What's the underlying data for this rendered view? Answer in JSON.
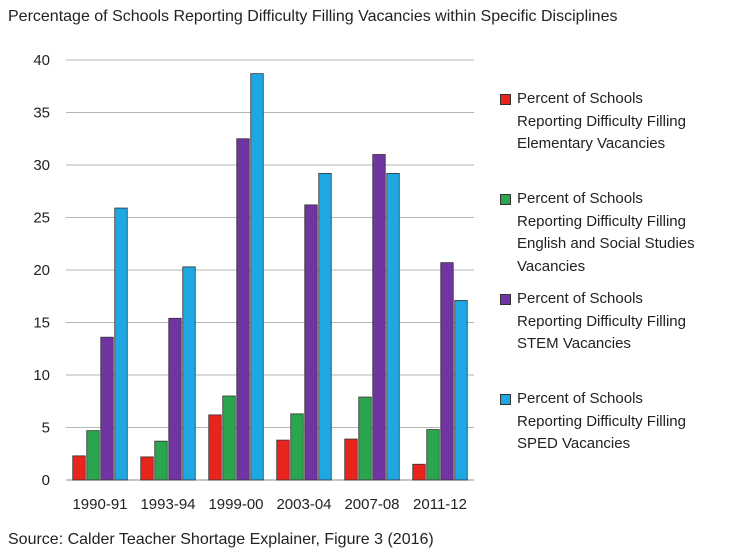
{
  "title": "Percentage of Schools Reporting Difficulty Filling Vacancies within Specific Disciplines",
  "source": "Source: Calder Teacher Shortage Explainer, Figure 3 (2016)",
  "chart_data": {
    "type": "bar",
    "title": "Percentage of Schools Reporting Difficulty Filling Vacancies within Specific Disciplines",
    "xlabel": "",
    "ylabel": "",
    "categories": [
      "1990-91",
      "1993-94",
      "1999-00",
      "2003-04",
      "2007-08",
      "2011-12"
    ],
    "ylim": [
      0,
      40
    ],
    "yticks": [
      0,
      5,
      10,
      15,
      20,
      25,
      30,
      35,
      40
    ],
    "grid": true,
    "legend_position": "right",
    "series": [
      {
        "name": "Percent of Schools Reporting Difficulty Filling Elementary Vacancies",
        "color": "#e8241c",
        "values": [
          2.3,
          2.2,
          6.2,
          3.8,
          3.9,
          1.5
        ]
      },
      {
        "name": "Percent of Schools Reporting Difficulty Filling English and Social Studies Vacancies",
        "color": "#2ba54e",
        "values": [
          4.7,
          3.7,
          8.0,
          6.3,
          7.9,
          4.8
        ]
      },
      {
        "name": "Percent of Schools Reporting Difficulty Filling STEM Vacancies",
        "color": "#7035a2",
        "values": [
          13.6,
          15.4,
          32.5,
          26.2,
          31.0,
          20.7
        ]
      },
      {
        "name": "Percent of Schools Reporting Difficulty Filling SPED Vacancies",
        "color": "#1ea7e2",
        "values": [
          25.9,
          20.3,
          38.7,
          29.2,
          29.2,
          17.1
        ]
      }
    ]
  },
  "legend": {
    "items": [
      {
        "lines": [
          "Percent of Schools",
          "Reporting Difficulty Filling",
          "Elementary Vacancies"
        ],
        "color": "#e8241c"
      },
      {
        "lines": [
          "Percent of Schools",
          "Reporting Difficulty Filling",
          "English and Social Studies",
          "Vacancies"
        ],
        "color": "#2ba54e"
      },
      {
        "lines": [
          "Percent of Schools",
          "Reporting Difficulty Filling",
          "STEM Vacancies"
        ],
        "color": "#7035a2"
      },
      {
        "lines": [
          "Percent of Schools",
          "Reporting Difficulty Filling",
          "SPED Vacancies"
        ],
        "color": "#1ea7e2"
      }
    ]
  }
}
